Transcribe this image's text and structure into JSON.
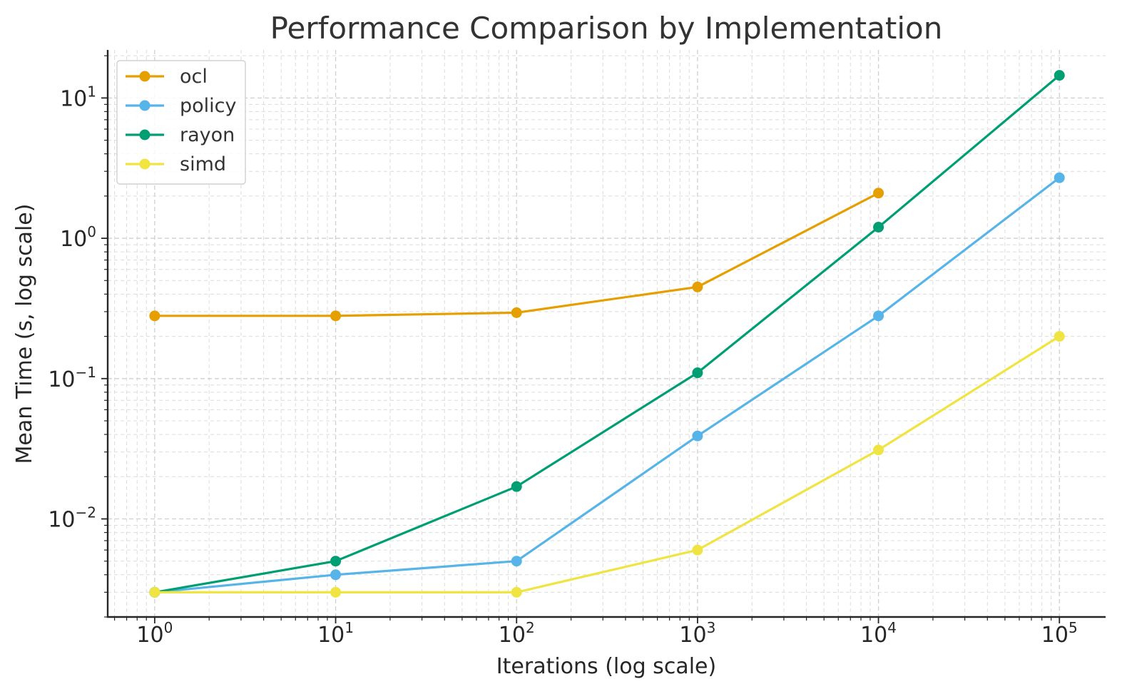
{
  "chart_data": {
    "type": "line",
    "title": "Performance Comparison by Implementation",
    "xlabel": "Iterations (log scale)",
    "ylabel": "Mean Time (s, log scale)",
    "x_scale": "log",
    "y_scale": "log",
    "xlim": [
      0.55,
      180000
    ],
    "ylim": [
      0.002,
      22
    ],
    "grid": true,
    "legend_position": "top-left",
    "x_ticks": [
      {
        "base": "10",
        "exp": "0",
        "value": 1
      },
      {
        "base": "10",
        "exp": "1",
        "value": 10
      },
      {
        "base": "10",
        "exp": "2",
        "value": 100
      },
      {
        "base": "10",
        "exp": "3",
        "value": 1000
      },
      {
        "base": "10",
        "exp": "4",
        "value": 10000
      },
      {
        "base": "10",
        "exp": "5",
        "value": 100000
      }
    ],
    "y_ticks": [
      {
        "base": "10",
        "exp": "−2",
        "value": 0.01
      },
      {
        "base": "10",
        "exp": "−1",
        "value": 0.1
      },
      {
        "base": "10",
        "exp": "0",
        "value": 1
      },
      {
        "base": "10",
        "exp": "1",
        "value": 10
      }
    ],
    "series": [
      {
        "name": "ocl",
        "color": "#E69F00",
        "x": [
          1,
          10,
          100,
          1000,
          10000
        ],
        "y": [
          0.28,
          0.28,
          0.295,
          0.45,
          2.1
        ]
      },
      {
        "name": "policy",
        "color": "#56B4E9",
        "x": [
          1,
          10,
          100,
          1000,
          10000,
          100000
        ],
        "y": [
          0.003,
          0.004,
          0.005,
          0.039,
          0.28,
          2.7
        ]
      },
      {
        "name": "rayon",
        "color": "#009E73",
        "x": [
          1,
          10,
          100,
          1000,
          10000,
          100000
        ],
        "y": [
          0.003,
          0.005,
          0.017,
          0.11,
          1.2,
          14.5
        ]
      },
      {
        "name": "simd",
        "color": "#F0E442",
        "x": [
          1,
          10,
          100,
          1000,
          10000,
          100000
        ],
        "y": [
          0.003,
          0.003,
          0.003,
          0.006,
          0.031,
          0.2
        ]
      }
    ]
  }
}
